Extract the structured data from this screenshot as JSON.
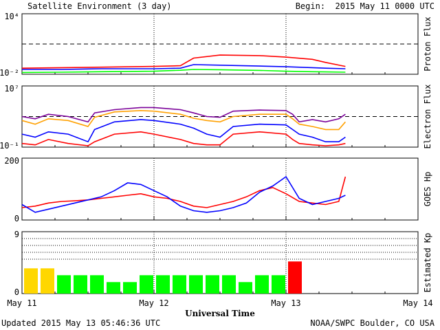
{
  "header": {
    "title": "Satellite Environment (3 day)",
    "begin": "Begin:  2015 May 11 0000 UTC"
  },
  "footer": {
    "updated": "Updated 2015 May 13 05:46:36 UTC",
    "credit": "NOAA/SWPC Boulder, CO USA"
  },
  "colors": {
    "red": "#ff0000",
    "blue": "#0000ff",
    "green": "#00ff00",
    "purple": "#7a0099",
    "orange": "#ffa000",
    "yellow": "#ffd700"
  },
  "chart_data": [
    {
      "type": "line",
      "name": "proton-flux",
      "ylabel": "Proton Flux",
      "yscale": "log",
      "ylim": [
        0.01,
        10000
      ],
      "y_ticks": [
        "10⁴",
        "10⁻²"
      ],
      "threshold": 10,
      "x_unit": "days since 2015 May 11 0000 UTC",
      "series": [
        {
          "color": "red",
          "x": [
            0,
            0.3,
            0.6,
            1.0,
            1.2,
            1.3,
            1.5,
            1.8,
            2.0,
            2.2,
            2.3,
            2.45
          ],
          "y": [
            0.04,
            0.045,
            0.05,
            0.06,
            0.07,
            0.4,
            0.8,
            0.7,
            0.5,
            0.3,
            0.15,
            0.06
          ]
        },
        {
          "color": "blue",
          "x": [
            0,
            0.3,
            0.6,
            1.0,
            1.2,
            1.3,
            1.5,
            1.8,
            2.0,
            2.2,
            2.3,
            2.45
          ],
          "y": [
            0.03,
            0.03,
            0.035,
            0.035,
            0.04,
            0.09,
            0.08,
            0.065,
            0.055,
            0.045,
            0.04,
            0.035
          ]
        },
        {
          "color": "green",
          "x": [
            0,
            0.3,
            0.6,
            1.0,
            1.2,
            1.3,
            1.5,
            1.8,
            2.0,
            2.2,
            2.3,
            2.45
          ],
          "y": [
            0.015,
            0.016,
            0.018,
            0.02,
            0.025,
            0.03,
            0.028,
            0.024,
            0.02,
            0.018,
            0.017,
            0.016
          ]
        }
      ]
    },
    {
      "type": "line",
      "name": "electron-flux",
      "ylabel": "Electron Flux",
      "yscale": "log",
      "ylim": [
        0.1,
        10000000
      ],
      "y_ticks": [
        "10⁷",
        "10⁻¹"
      ],
      "threshold": 1000,
      "x_unit": "days since 2015 May 11 0000 UTC",
      "series": [
        {
          "color": "purple",
          "x": [
            0,
            0.1,
            0.2,
            0.35,
            0.5,
            0.55,
            0.7,
            0.9,
            1.0,
            1.2,
            1.3,
            1.4,
            1.5,
            1.6,
            1.8,
            2.0,
            2.05,
            2.1,
            2.2,
            2.3,
            2.4,
            2.45
          ],
          "y": [
            1000,
            500,
            2000,
            1000,
            200,
            3000,
            8000,
            15000,
            15000,
            8000,
            3000,
            1000,
            800,
            5000,
            7000,
            6000,
            2000,
            200,
            400,
            200,
            500,
            2000
          ]
        },
        {
          "color": "orange",
          "x": [
            0,
            0.1,
            0.2,
            0.35,
            0.5,
            0.55,
            0.7,
            0.9,
            1.0,
            1.2,
            1.3,
            1.4,
            1.5,
            1.6,
            1.8,
            2.0,
            2.05,
            2.1,
            2.2,
            2.3,
            2.4,
            2.45
          ],
          "y": [
            300,
            100,
            500,
            300,
            50,
            800,
            4000,
            6000,
            5000,
            2000,
            600,
            300,
            200,
            1000,
            2000,
            2000,
            500,
            100,
            50,
            20,
            20,
            200
          ]
        },
        {
          "color": "blue",
          "x": [
            0,
            0.1,
            0.2,
            0.35,
            0.5,
            0.55,
            0.7,
            0.9,
            1.0,
            1.2,
            1.3,
            1.4,
            1.5,
            1.6,
            1.8,
            2.0,
            2.05,
            2.1,
            2.2,
            2.3,
            2.4,
            2.45
          ],
          "y": [
            5,
            2,
            10,
            5,
            0.5,
            20,
            200,
            400,
            300,
            100,
            30,
            5,
            2,
            50,
            100,
            80,
            20,
            5,
            2,
            0.5,
            0.5,
            2
          ]
        },
        {
          "color": "red",
          "x": [
            0,
            0.1,
            0.2,
            0.35,
            0.5,
            0.55,
            0.7,
            0.9,
            1.0,
            1.2,
            1.3,
            1.4,
            1.5,
            1.6,
            1.8,
            2.0,
            2.05,
            2.1,
            2.2,
            2.3,
            2.4,
            2.45
          ],
          "y": [
            0.3,
            0.2,
            1,
            0.3,
            0.15,
            0.5,
            5,
            10,
            5,
            1,
            0.3,
            0.2,
            0.2,
            5,
            10,
            5,
            1,
            0.3,
            0.2,
            0.15,
            0.2,
            0.3
          ]
        }
      ]
    },
    {
      "type": "line",
      "name": "goes-hp",
      "ylabel": "GOES Hp",
      "ylim": [
        0,
        200
      ],
      "y_ticks": [
        "200",
        "0"
      ],
      "x_unit": "days since 2015 May 11 0000 UTC",
      "series": [
        {
          "color": "red",
          "x": [
            0,
            0.1,
            0.2,
            0.3,
            0.4,
            0.5,
            0.6,
            0.7,
            0.8,
            0.9,
            1.0,
            1.1,
            1.2,
            1.3,
            1.4,
            1.5,
            1.6,
            1.7,
            1.8,
            1.9,
            2.0,
            2.1,
            2.2,
            2.3,
            2.4,
            2.45
          ],
          "y": [
            40,
            45,
            55,
            60,
            62,
            65,
            70,
            75,
            80,
            85,
            75,
            70,
            60,
            45,
            40,
            50,
            60,
            75,
            95,
            105,
            85,
            60,
            55,
            50,
            60,
            140
          ]
        },
        {
          "color": "blue",
          "x": [
            0,
            0.1,
            0.2,
            0.3,
            0.4,
            0.5,
            0.6,
            0.7,
            0.8,
            0.9,
            1.0,
            1.1,
            1.2,
            1.3,
            1.4,
            1.5,
            1.6,
            1.7,
            1.8,
            1.9,
            2.0,
            2.1,
            2.2,
            2.3,
            2.4,
            2.45
          ],
          "y": [
            50,
            25,
            35,
            45,
            55,
            65,
            75,
            95,
            120,
            115,
            95,
            75,
            45,
            30,
            25,
            30,
            40,
            55,
            90,
            110,
            140,
            70,
            50,
            60,
            70,
            80
          ]
        }
      ]
    },
    {
      "type": "bar",
      "name": "estimated-kp",
      "ylabel": "Estimated Kp",
      "ylim": [
        0,
        9
      ],
      "y_ticks": [
        "9",
        "0"
      ],
      "x_unit": "days since 2015 May 11 0000 UTC",
      "x_step": 0.125,
      "values": [
        3.67,
        3.67,
        2.67,
        2.67,
        2.67,
        1.67,
        1.67,
        2.67,
        2.67,
        2.67,
        2.67,
        2.67,
        2.67,
        1.67,
        2.67,
        2.67,
        4.67
      ],
      "colors": [
        "yellow",
        "yellow",
        "green",
        "green",
        "green",
        "green",
        "green",
        "green",
        "green",
        "green",
        "green",
        "green",
        "green",
        "green",
        "green",
        "green",
        "red"
      ]
    }
  ],
  "x_axis": {
    "label": "Universal Time",
    "range_days": [
      0,
      3
    ],
    "ticks": [
      {
        "day": 0,
        "label": "May 11"
      },
      {
        "day": 1,
        "label": "May 12"
      },
      {
        "day": 2,
        "label": "May 13"
      },
      {
        "day": 3,
        "label": "May 14"
      }
    ]
  }
}
